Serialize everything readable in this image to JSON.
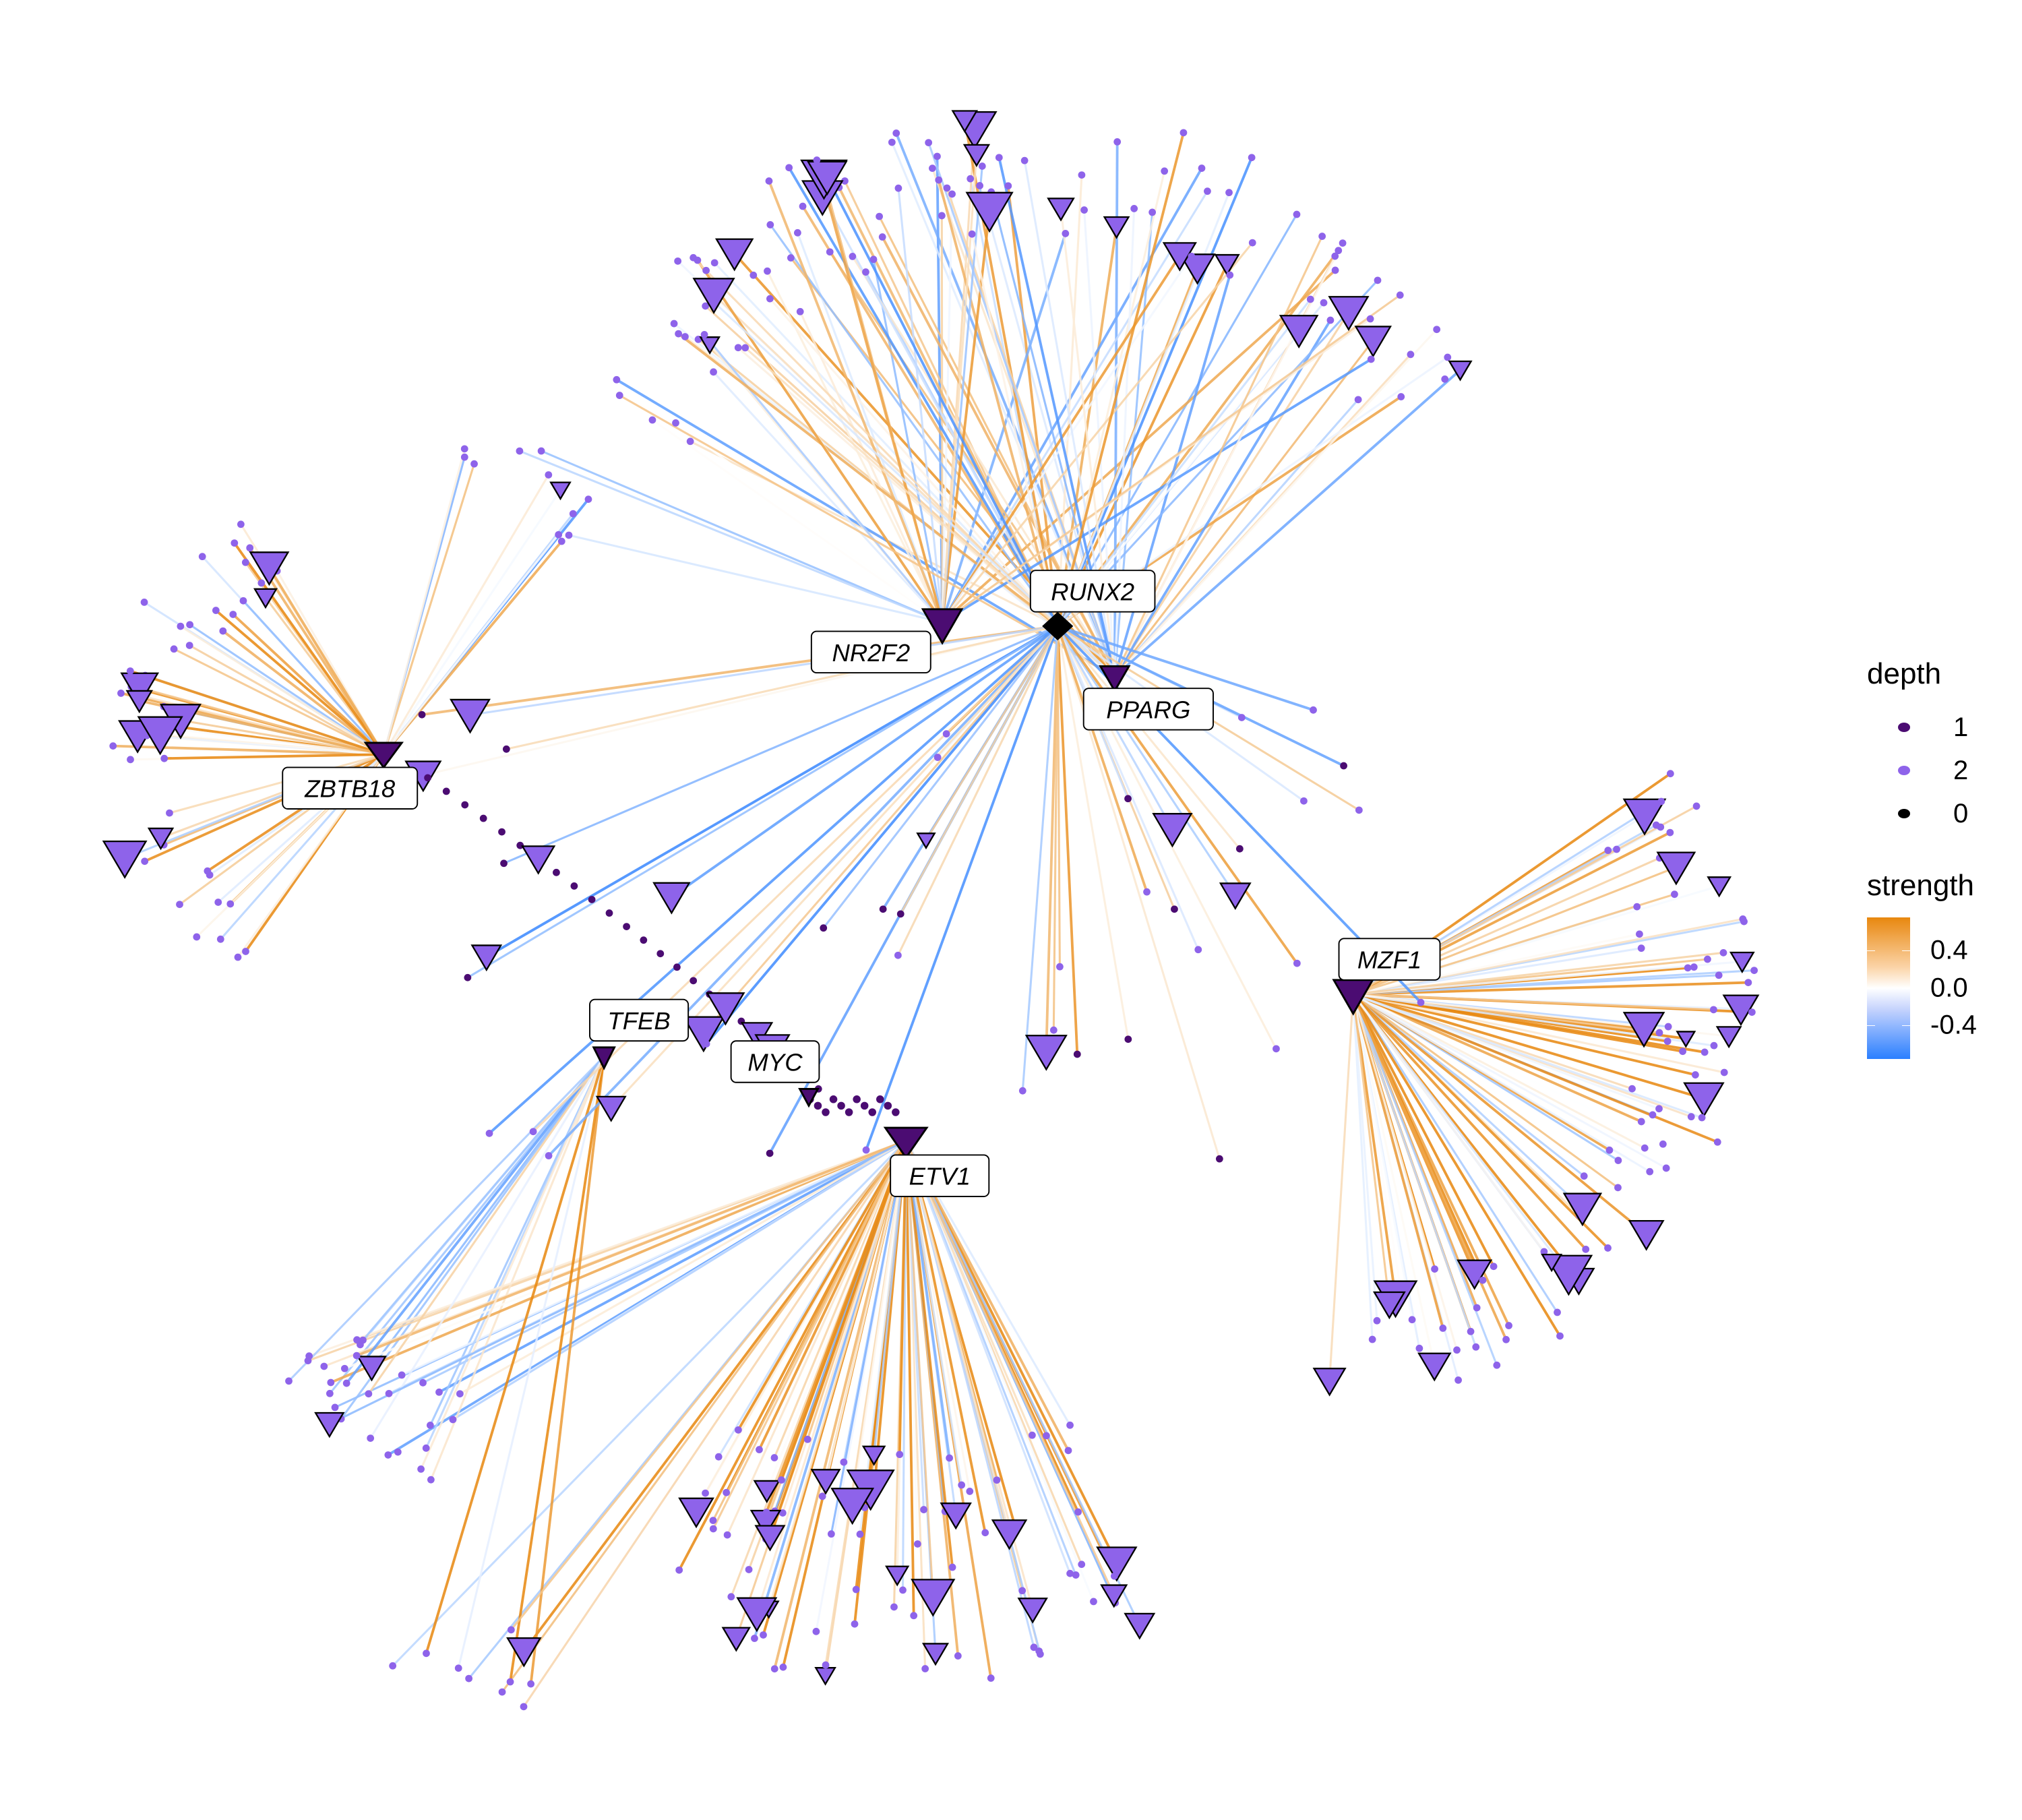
{
  "hubs": {
    "runx2": {
      "label": "RUNX2",
      "depth": "0"
    },
    "nr2f2": {
      "label": "NR2F2",
      "depth": "1"
    },
    "pparg": {
      "label": "PPARG",
      "depth": "1"
    },
    "zbtb18": {
      "label": "ZBTB18",
      "depth": "1"
    },
    "mzf1": {
      "label": "MZF1",
      "depth": "1"
    },
    "tfeb": {
      "label": "TFEB",
      "depth": "1"
    },
    "myc": {
      "label": "MYC",
      "depth": "1"
    },
    "etv1": {
      "label": "ETV1",
      "depth": "1"
    }
  },
  "legend": {
    "depth_title": "depth",
    "depth_items": [
      {
        "label": "1",
        "color": "#4B0C72"
      },
      {
        "label": "2",
        "color": "#8E63EA"
      },
      {
        "label": "0",
        "color": "#000000"
      }
    ],
    "strength_title": "strength",
    "strength_ticks": [
      "0.4",
      "0.0",
      "-0.4"
    ],
    "strength_colors": {
      "high": "#E8870E",
      "mid": "#FFFFFF",
      "low": "#2A7FFF"
    }
  }
}
